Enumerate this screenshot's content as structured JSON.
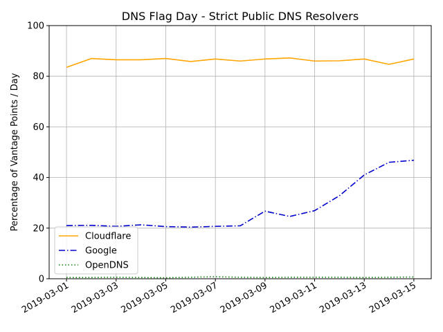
{
  "chart_data": {
    "type": "line",
    "title": "DNS Flag Day - Strict Public DNS Resolvers",
    "xlabel": "",
    "ylabel": "Percentage of Vantage Points / Day",
    "ylim": [
      0,
      100
    ],
    "xlim": [
      "2019-03-01",
      "2019-03-15"
    ],
    "yticks": [
      "0",
      "20",
      "40",
      "60",
      "80",
      "100"
    ],
    "xticks": [
      "2019-03-01",
      "2019-03-03",
      "2019-03-05",
      "2019-03-07",
      "2019-03-09",
      "2019-03-11",
      "2019-03-13",
      "2019-03-15"
    ],
    "grid": true,
    "legend_position": "lower-left",
    "x": [
      "2019-03-01",
      "2019-03-02",
      "2019-03-03",
      "2019-03-04",
      "2019-03-05",
      "2019-03-06",
      "2019-03-07",
      "2019-03-08",
      "2019-03-09",
      "2019-03-10",
      "2019-03-11",
      "2019-03-12",
      "2019-03-13",
      "2019-03-14",
      "2019-03-15"
    ],
    "series": [
      {
        "name": "Cloudflare",
        "color": "#ffa500",
        "style": "solid",
        "values": [
          83.5,
          87.0,
          86.5,
          86.5,
          87.0,
          85.8,
          86.8,
          86.0,
          86.8,
          87.2,
          86.0,
          86.1,
          86.8,
          84.7,
          86.8
        ]
      },
      {
        "name": "Google",
        "color": "#0000cd",
        "style": "dashdot",
        "values": [
          21.0,
          21.1,
          20.7,
          21.3,
          20.6,
          20.4,
          20.7,
          20.9,
          26.7,
          24.6,
          26.9,
          32.8,
          41.0,
          46.0,
          46.8
        ]
      },
      {
        "name": "OpenDNS",
        "color": "#008000",
        "style": "dotted",
        "values": [
          0.5,
          0.5,
          0.6,
          0.5,
          0.4,
          0.6,
          0.8,
          0.6,
          0.5,
          0.6,
          0.6,
          0.6,
          0.5,
          0.6,
          0.7
        ]
      }
    ]
  }
}
